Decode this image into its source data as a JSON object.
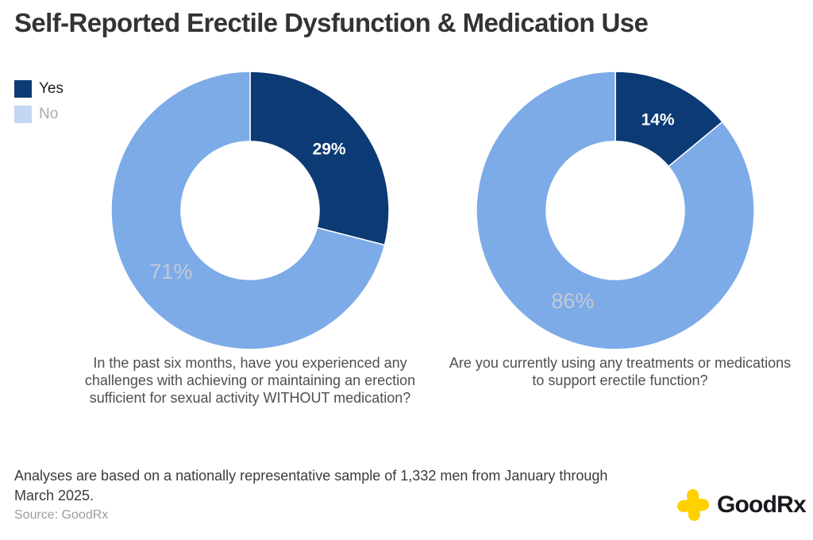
{
  "title": "Self-Reported Erectile Dysfunction & Medication Use",
  "legend": {
    "items": [
      {
        "label": "Yes",
        "swatch": "#0c3a74"
      },
      {
        "label": "No",
        "swatch": "#c3d7f2"
      }
    ]
  },
  "colors": {
    "slices": [
      "#0c3a74",
      "#7dabe8"
    ],
    "slice_labels": [
      "#ffffff",
      "#c3c9d4"
    ],
    "brand_yellow": "#ffd100"
  },
  "chart_data": [
    {
      "type": "pie",
      "donut": true,
      "start_angle_deg": 0,
      "direction": "clockwise",
      "labels": [
        "Yes",
        "No"
      ],
      "values": [
        29,
        71
      ],
      "unit": "%",
      "legend_position": "top-left",
      "caption": "In the past six months, have you experienced any challenges with achieving or maintaining an erection sufficient for sexual activity WITHOUT medication?"
    },
    {
      "type": "pie",
      "donut": true,
      "start_angle_deg": 0,
      "direction": "clockwise",
      "labels": [
        "Yes",
        "No"
      ],
      "values": [
        14,
        86
      ],
      "unit": "%",
      "legend_position": "top-left",
      "caption": "Are you currently using any treatments or medications to support erectile function?"
    }
  ],
  "footnote": "Analyses are based on a nationally representative sample of 1,332 men from January through March 2025.",
  "source": "Source: GoodRx",
  "brand": {
    "part1": "Good",
    "part2": "Rx"
  }
}
